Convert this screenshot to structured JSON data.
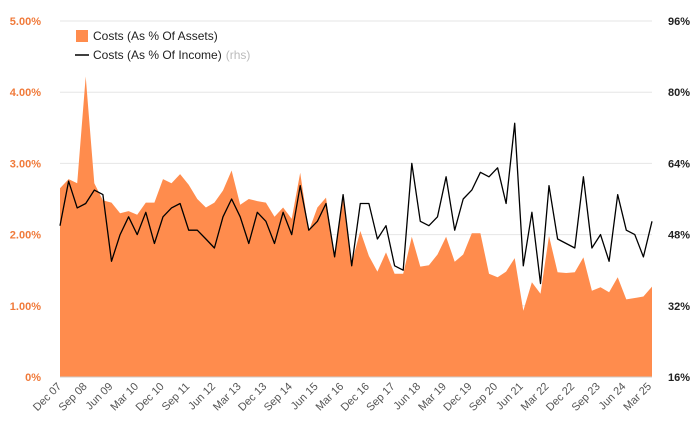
{
  "chart_data": {
    "type": "area",
    "y_left": {
      "lim": [
        0,
        5
      ],
      "ticks": [
        0,
        1,
        2,
        3,
        4,
        5
      ],
      "tick_labels": [
        "0%",
        "1.00%",
        "2.00%",
        "3.00%",
        "4.00%",
        "5.00%"
      ],
      "color": "#f07a3a"
    },
    "y_right": {
      "lim": [
        16,
        96
      ],
      "ticks": [
        16,
        32,
        48,
        64,
        80,
        96
      ],
      "tick_labels": [
        "16%",
        "32%",
        "48%",
        "64%",
        "80%",
        "96%"
      ]
    },
    "x_tick_labels": [
      "Dec 07",
      "Sep 08",
      "Jun 09",
      "Mar 10",
      "Dec 10",
      "Sep 11",
      "Jun 12",
      "Mar 13",
      "Dec 13",
      "Sep 14",
      "Jun 15",
      "Mar 16",
      "Dec 16",
      "Sep 17",
      "Jun 18",
      "Mar 19",
      "Dec 19",
      "Sep 20",
      "Jun 21",
      "Mar 22",
      "Dec 22",
      "Sep 23",
      "Jun 24",
      "Mar 25"
    ],
    "legend": [
      {
        "label": "Costs (As % Of Assets)",
        "suffix": "",
        "marker": "square",
        "color": "#ff8c4d"
      },
      {
        "label": "Costs (As % Of Income)",
        "suffix": "(rhs)",
        "marker": "line",
        "color": "#000000"
      }
    ],
    "series": [
      {
        "name": "Costs (As % Of Assets)",
        "axis": "left",
        "kind": "area",
        "color": "#ff8c4d",
        "values": [
          2.65,
          2.78,
          2.72,
          4.22,
          2.72,
          2.48,
          2.45,
          2.3,
          2.33,
          2.28,
          2.45,
          2.45,
          2.78,
          2.72,
          2.85,
          2.7,
          2.5,
          2.38,
          2.45,
          2.62,
          2.9,
          2.42,
          2.5,
          2.47,
          2.45,
          2.25,
          2.38,
          2.22,
          2.87,
          2.05,
          2.38,
          2.52,
          1.68,
          2.52,
          1.6,
          2.05,
          1.7,
          1.48,
          1.75,
          1.45,
          1.45,
          1.97,
          1.55,
          1.57,
          1.72,
          1.97,
          1.62,
          1.72,
          2.02,
          2.02,
          1.45,
          1.4,
          1.48,
          1.67,
          0.93,
          1.33,
          1.17,
          1.98,
          1.47,
          1.46,
          1.47,
          1.68,
          1.21,
          1.26,
          1.19,
          1.4,
          1.09,
          1.11,
          1.13,
          1.27
        ]
      },
      {
        "name": "Costs (As % Of Income)",
        "axis": "right",
        "kind": "line",
        "color": "#000000",
        "values": [
          50,
          60,
          54,
          55,
          58,
          57,
          42,
          48,
          52,
          48,
          53,
          46,
          52,
          54,
          55,
          49,
          49,
          47,
          45,
          52,
          56,
          52,
          46,
          53,
          51,
          46,
          53,
          48,
          59,
          49,
          51,
          55,
          43,
          57,
          41,
          55,
          55,
          47,
          50,
          41,
          40,
          64,
          51,
          50,
          52,
          61,
          49,
          56,
          58,
          62,
          61,
          63,
          55,
          73,
          41,
          53,
          37,
          59,
          47,
          46,
          45,
          61,
          45,
          48,
          42,
          57,
          49,
          48,
          43,
          51
        ]
      }
    ]
  }
}
